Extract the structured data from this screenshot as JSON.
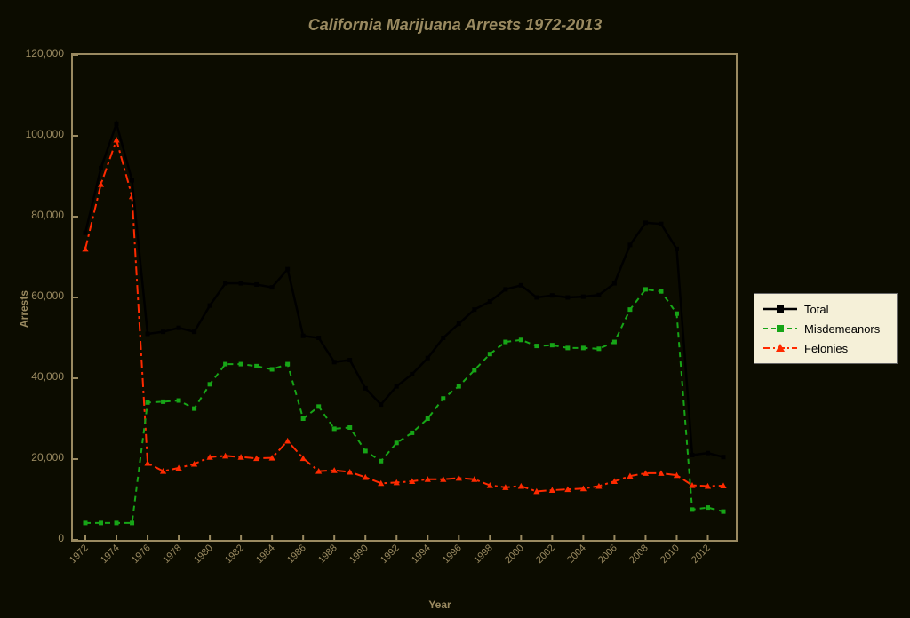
{
  "chart": {
    "type": "line",
    "title": "California Marijuana Arrests 1972-2013",
    "title_fontsize": 18,
    "title_color": "#9a8a60",
    "background_color": "#0c0c00",
    "plot_border_color": "#9a8a60",
    "axis_label_color": "#9a8a60",
    "tick_label_color": "#9a8a60",
    "xlabel": "Year",
    "ylabel": "Arrests",
    "label_fontsize": 12,
    "tick_fontsize": 12,
    "ylim": [
      0,
      120000
    ],
    "ytick_step": 20000,
    "yticks": [
      0,
      20000,
      40000,
      60000,
      80000,
      100000,
      120000
    ],
    "ytick_labels": [
      "0",
      "20,000",
      "40,000",
      "60,000",
      "80,000",
      "100,000",
      "120,000"
    ],
    "x_values": [
      1972,
      1973,
      1974,
      1975,
      1976,
      1977,
      1978,
      1979,
      1980,
      1981,
      1982,
      1983,
      1984,
      1985,
      1986,
      1987,
      1988,
      1989,
      1990,
      1991,
      1992,
      1993,
      1994,
      1995,
      1996,
      1997,
      1998,
      1999,
      2000,
      2001,
      2002,
      2003,
      2004,
      2005,
      2006,
      2007,
      2008,
      2009,
      2010,
      2011,
      2012,
      2013
    ],
    "xtick_values": [
      1972,
      1974,
      1976,
      1978,
      1980,
      1982,
      1984,
      1986,
      1988,
      1990,
      1992,
      1994,
      1996,
      1998,
      2000,
      2002,
      2004,
      2006,
      2008,
      2010,
      2012
    ],
    "xtick_labels": [
      "1972",
      "1974",
      "1976",
      "1978",
      "1980",
      "1982",
      "1984",
      "1986",
      "1988",
      "1990",
      "1992",
      "1994",
      "1996",
      "1998",
      "2000",
      "2002",
      "2004",
      "2006",
      "2008",
      "2010",
      "2012"
    ],
    "legend": {
      "background": "#f5f0d8",
      "border": "#666666",
      "position": "right",
      "items": [
        {
          "label": "Total",
          "color": "#000000",
          "marker": "square",
          "dash": "solid"
        },
        {
          "label": "Misdemeanors",
          "color": "#17a517",
          "marker": "square",
          "dash": "dash"
        },
        {
          "label": "Felonies",
          "color": "#ff2a00",
          "marker": "triangle",
          "dash": "dashdot"
        }
      ]
    },
    "series": {
      "total": {
        "label": "Total",
        "color": "#000000",
        "line_width": 2.5,
        "dash": "solid",
        "marker": "square",
        "marker_size": 5,
        "values": [
          76000,
          92000,
          103000,
          89000,
          51000,
          51500,
          52500,
          51500,
          58000,
          63500,
          63500,
          63200,
          62500,
          67000,
          50500,
          50000,
          44000,
          44500,
          37500,
          33500,
          38000,
          41000,
          45000,
          50000,
          53500,
          57000,
          59000,
          62000,
          63000,
          60000,
          60500,
          60000,
          60200,
          60600,
          63500,
          73000,
          78500,
          78200,
          72000,
          21000,
          21500,
          20500
        ]
      },
      "misdemeanors": {
        "label": "Misdemeanors",
        "color": "#17a517",
        "line_width": 2,
        "dash": "dash",
        "marker": "square",
        "marker_size": 5,
        "values": [
          4200,
          4200,
          4200,
          4200,
          34000,
          34200,
          34500,
          32500,
          38500,
          43500,
          43500,
          43000,
          42200,
          43500,
          30000,
          33000,
          27500,
          27800,
          22000,
          19500,
          24000,
          26500,
          30000,
          35000,
          38000,
          42000,
          46000,
          49000,
          49500,
          48000,
          48200,
          47500,
          47500,
          47300,
          49000,
          57000,
          62000,
          61500,
          56000,
          7500,
          8000,
          7000
        ]
      },
      "felonies": {
        "label": "Felonies",
        "color": "#ff2a00",
        "line_width": 2,
        "dash": "dashdot",
        "marker": "triangle",
        "marker_size": 6,
        "values": [
          72000,
          88000,
          99000,
          85000,
          19000,
          17000,
          17800,
          18800,
          20500,
          20800,
          20500,
          20200,
          20300,
          24500,
          20200,
          17000,
          17200,
          16800,
          15500,
          14000,
          14200,
          14500,
          15000,
          15000,
          15300,
          15000,
          13500,
          13000,
          13300,
          12000,
          12300,
          12500,
          12700,
          13300,
          14500,
          15800,
          16500,
          16500,
          16000,
          13500,
          13300,
          13400
        ]
      }
    }
  }
}
